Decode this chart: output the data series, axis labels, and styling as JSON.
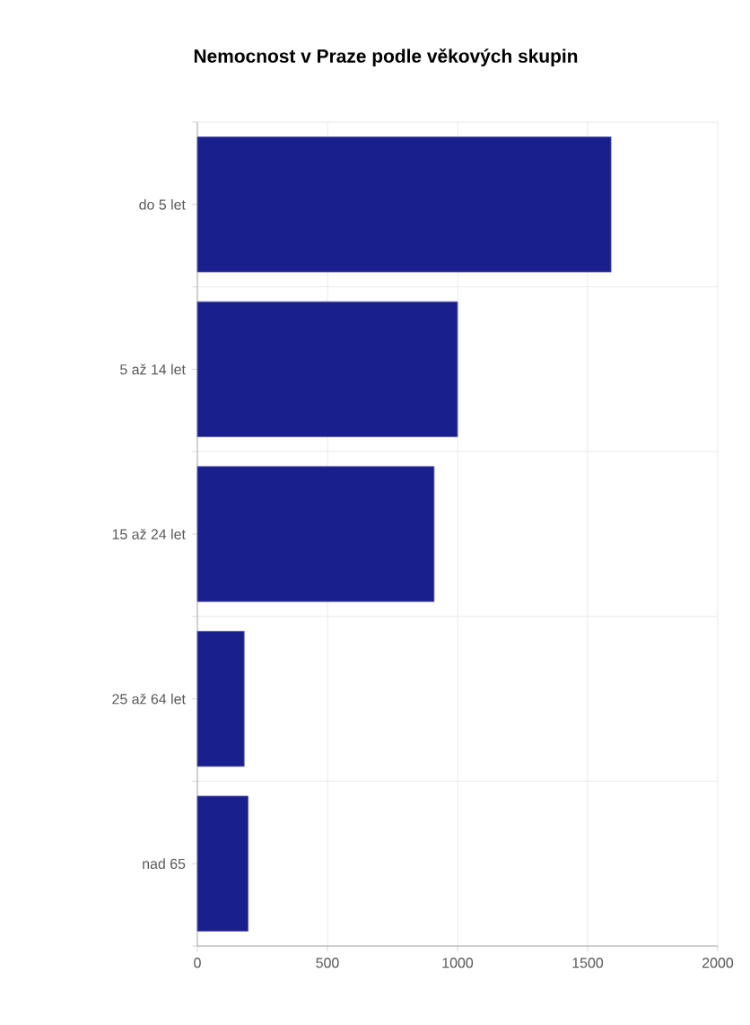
{
  "chart_data": {
    "type": "bar",
    "orientation": "horizontal",
    "title": "Nemocnost v Praze podle věkových skupin",
    "categories": [
      "do 5 let",
      "5 až 14 let",
      "15 až 24 let",
      "25 až 64 let",
      "nad 65"
    ],
    "values": [
      1590,
      1000,
      910,
      180,
      195
    ],
    "color": "#1a1f8e",
    "xlim": [
      0,
      2000
    ],
    "xticks": [
      0,
      500,
      1000,
      1500,
      2000
    ],
    "grid": true
  }
}
